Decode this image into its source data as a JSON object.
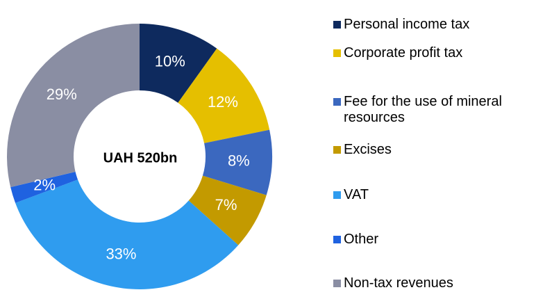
{
  "chart_data": {
    "type": "donut",
    "center_label": "UAH 520bn",
    "categories": [
      "Personal income tax",
      "Corporate profit tax",
      "Fee for the use of mineral resources",
      "Excises",
      "VAT",
      "Other",
      "Non-tax revenues"
    ],
    "values": [
      10,
      12,
      8,
      7,
      33,
      2,
      29
    ],
    "value_labels": [
      "10%",
      "12%",
      "8%",
      "7%",
      "33%",
      "2%",
      "29%"
    ],
    "colors": [
      "#0e2a5e",
      "#e5bf00",
      "#3b68bf",
      "#c39a00",
      "#2f9cef",
      "#1f62e0",
      "#8a8ea3"
    ],
    "legend": "right"
  }
}
